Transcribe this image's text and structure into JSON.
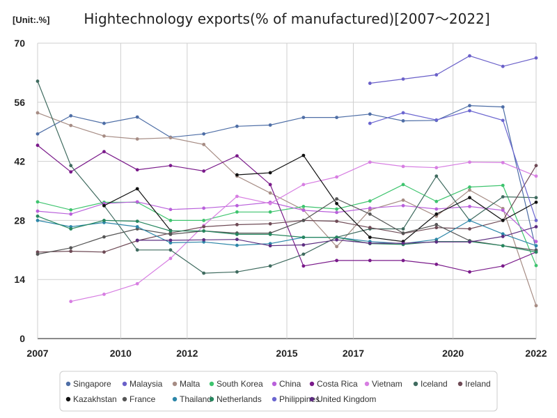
{
  "chart_data": {
    "type": "line",
    "title": "Hightechnology exports(% of manufactured)[2007～2022]",
    "unit_label": "[Unit:.%]",
    "xlabel": "",
    "ylabel": "",
    "x": [
      2007,
      2008,
      2009,
      2010,
      2011,
      2012,
      2013,
      2014,
      2015,
      2016,
      2017,
      2018,
      2019,
      2020,
      2021,
      2022
    ],
    "xlim": [
      2007,
      2022
    ],
    "ylim": [
      0,
      70
    ],
    "x_ticks": [
      "2007",
      "2010",
      "2012",
      "2015",
      "2017",
      "2020",
      "2022"
    ],
    "x_tick_values": [
      2007,
      2009.5,
      2011.5,
      2014.5,
      2016.5,
      2019.5,
      2022
    ],
    "y_ticks": [
      "0",
      "14",
      "28",
      "42",
      "56",
      "70"
    ],
    "y_tick_values": [
      0,
      14,
      28,
      42,
      56,
      70
    ],
    "grid": true,
    "legend_position": "bottom",
    "series": [
      {
        "name": "Singapore",
        "color": "#4e6ea6",
        "values": [
          48.5,
          52.8,
          51.0,
          52.5,
          47.7,
          48.5,
          50.3,
          50.6,
          52.4,
          52.4,
          53.2,
          51.6,
          51.7,
          55.2,
          54.9,
          21.0
        ]
      },
      {
        "name": "Malaysia",
        "color": "#6a60c9",
        "values": [
          null,
          null,
          null,
          null,
          null,
          null,
          null,
          null,
          null,
          null,
          60.5,
          61.5,
          62.5,
          67.0,
          64.5,
          66.5
        ]
      },
      {
        "name": "Malta",
        "color": "#a68c84",
        "values": [
          53.5,
          50.5,
          48.0,
          47.3,
          47.6,
          46.0,
          38.5,
          34.5,
          30.5,
          21.8,
          30.5,
          32.8,
          29.0,
          35.2,
          30.8,
          7.8
        ]
      },
      {
        "name": "South Korea",
        "color": "#3ec46e",
        "values": [
          32.4,
          30.5,
          32.3,
          32.3,
          28.0,
          28.0,
          30.0,
          30.0,
          31.3,
          30.7,
          32.6,
          36.5,
          32.5,
          35.9,
          36.3,
          17.3
        ]
      },
      {
        "name": "China",
        "color": "#b960db",
        "values": [
          30.2,
          29.5,
          32.0,
          32.4,
          30.6,
          30.9,
          31.5,
          32.3,
          30.4,
          29.9,
          30.9,
          31.5,
          30.7,
          31.3,
          30.4,
          23.0
        ]
      },
      {
        "name": "Costa Rica",
        "color": "#7a1a8a",
        "values": [
          45.8,
          39.5,
          44.3,
          40.0,
          41.0,
          39.7,
          43.3,
          36.5,
          17.2,
          18.5,
          18.5,
          18.5,
          17.6,
          15.8,
          17.2,
          20.5
        ]
      },
      {
        "name": "Vietnam",
        "color": "#d77ee2",
        "values": [
          null,
          8.8,
          10.5,
          13.0,
          19.0,
          26.8,
          33.7,
          32.0,
          36.5,
          38.3,
          41.8,
          40.8,
          40.5,
          41.8,
          41.7,
          38.5
        ]
      },
      {
        "name": "Iceland",
        "color": "#3f6b5f",
        "values": [
          61.0,
          41.0,
          31.5,
          21.0,
          21.0,
          15.5,
          15.8,
          17.2,
          20.0,
          24.0,
          26.0,
          26.0,
          38.5,
          28.0,
          33.6,
          33.4
        ]
      },
      {
        "name": "Ireland",
        "color": "#6e4a55",
        "values": [
          20.5,
          20.7,
          20.5,
          23.2,
          25.0,
          26.5,
          27.0,
          27.2,
          28.0,
          27.8,
          26.3,
          24.9,
          26.3,
          26.0,
          28.0,
          41.0
        ]
      },
      {
        "name": "Kazakhstan",
        "color": "#111111",
        "values": [
          null,
          null,
          31.5,
          35.5,
          25.6,
          null,
          38.8,
          39.3,
          43.4,
          32.0,
          24.0,
          23.0,
          29.5,
          33.4,
          28.0,
          32.3
        ]
      },
      {
        "name": "France",
        "color": "#555555",
        "values": [
          20.0,
          21.5,
          24.1,
          26.0,
          24.7,
          25.5,
          25.0,
          25.0,
          28.0,
          33.1,
          29.5,
          25.0,
          27.0,
          23.2,
          22.0,
          20.9
        ]
      },
      {
        "name": "Thailand",
        "color": "#2c86a8",
        "values": [
          28.0,
          26.5,
          27.5,
          26.5,
          22.7,
          22.9,
          22.1,
          22.5,
          24.0,
          24.0,
          23.0,
          22.5,
          23.5,
          28.0,
          24.8,
          22.0
        ]
      },
      {
        "name": "Netherlands",
        "color": "#26865e",
        "values": [
          29.0,
          26.0,
          28.0,
          27.8,
          25.5,
          25.5,
          24.7,
          24.7,
          24.0,
          24.0,
          22.5,
          22.3,
          23.0,
          23.0,
          22.0,
          20.5
        ]
      },
      {
        "name": "Philippines",
        "color": "#6b66d0",
        "values": [
          null,
          null,
          null,
          null,
          null,
          null,
          null,
          null,
          null,
          null,
          51.0,
          53.5,
          51.8,
          54.0,
          51.7,
          28.0
        ]
      },
      {
        "name": "United Kingdom",
        "color": "#5c2d80",
        "values": [
          null,
          null,
          null,
          23.3,
          23.3,
          23.4,
          23.5,
          22.0,
          22.2,
          23.4,
          22.6,
          22.6,
          22.9,
          22.9,
          24.2,
          26.5
        ]
      }
    ]
  }
}
